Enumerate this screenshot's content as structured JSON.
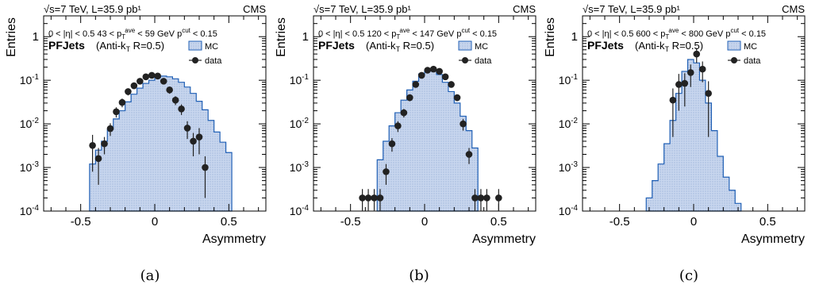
{
  "chart_data": [
    {
      "type": "histogram",
      "caption": "(a)",
      "header_left": "√s=7 TeV, L=35.9 pb¹",
      "header_right": "CMS",
      "cut_text": "0 < |η| < 0.5     43 < pTave < 59 GeV     pTcut < 0.15",
      "algo_main": "PFJets",
      "algo_sub": "(Anti-kT R=0.5)",
      "ylabel": "Entries",
      "xlabel": "Asymmetry",
      "xlim": [
        -0.75,
        0.75
      ],
      "ylim": [
        0.0001,
        3
      ],
      "yscale": "log",
      "xticks": [
        -0.5,
        0,
        0.5
      ],
      "xtick_labels": [
        "-0.5",
        "0",
        "0.5"
      ],
      "yticks": [
        0.0001,
        0.001,
        0.01,
        0.1,
        1
      ],
      "ytick_labels": [
        "10-4",
        "10-3",
        "10-2",
        "10-1",
        "1"
      ],
      "legend": [
        {
          "label": "MC",
          "kind": "fill",
          "color": "#c6d4ec"
        },
        {
          "label": "data",
          "kind": "marker",
          "color": "#222222"
        }
      ],
      "bin_width": 0.04,
      "mc": {
        "edges_start": -0.44,
        "values": [
          0.0012,
          0.0025,
          0.004,
          0.0075,
          0.013,
          0.02,
          0.032,
          0.048,
          0.066,
          0.085,
          0.1,
          0.115,
          0.125,
          0.12,
          0.108,
          0.09,
          0.07,
          0.05,
          0.033,
          0.021,
          0.012,
          0.0065,
          0.0038,
          0.0022
        ]
      },
      "data": {
        "x": [
          -0.42,
          -0.38,
          -0.34,
          -0.3,
          -0.26,
          -0.22,
          -0.18,
          -0.14,
          -0.1,
          -0.06,
          -0.02,
          0.02,
          0.06,
          0.1,
          0.14,
          0.18,
          0.22,
          0.26,
          0.3,
          0.34
        ],
        "y": [
          0.0032,
          0.0016,
          0.0035,
          0.0078,
          0.019,
          0.031,
          0.055,
          0.075,
          0.095,
          0.12,
          0.13,
          0.125,
          0.095,
          0.06,
          0.035,
          0.022,
          0.008,
          0.004,
          0.005,
          0.001
        ],
        "yerr": [
          0.0024,
          0.0012,
          0.0015,
          0.0025,
          0.005,
          0.007,
          0.01,
          0.012,
          0.014,
          0.016,
          0.016,
          0.016,
          0.014,
          0.011,
          0.008,
          0.006,
          0.0035,
          0.0022,
          0.003,
          0.0008
        ]
      }
    },
    {
      "type": "histogram",
      "caption": "(b)",
      "header_left": "√s=7 TeV, L=35.9 pb¹",
      "header_right": "CMS",
      "cut_text": "0 < |η| < 0.5     120 < pTave < 147 GeV     pTcut < 0.15",
      "algo_main": "PFJets",
      "algo_sub": "(Anti-kT R=0.5)",
      "ylabel": "Entries",
      "xlabel": "Asymmetry",
      "xlim": [
        -0.75,
        0.75
      ],
      "ylim": [
        0.0001,
        3
      ],
      "yscale": "log",
      "xticks": [
        -0.5,
        0,
        0.5
      ],
      "xtick_labels": [
        "-0.5",
        "0",
        "0.5"
      ],
      "yticks": [
        0.0001,
        0.001,
        0.01,
        0.1,
        1
      ],
      "ytick_labels": [
        "10-4",
        "10-3",
        "10-2",
        "10-1",
        "1"
      ],
      "legend": [
        {
          "label": "MC",
          "kind": "fill",
          "color": "#c6d4ec"
        },
        {
          "label": "data",
          "kind": "marker",
          "color": "#222222"
        }
      ],
      "bin_width": 0.04,
      "mc": {
        "edges_start": -0.32,
        "values": [
          0.0015,
          0.004,
          0.009,
          0.018,
          0.035,
          0.06,
          0.095,
          0.14,
          0.17,
          0.165,
          0.135,
          0.09,
          0.055,
          0.03,
          0.015,
          0.007,
          0.0028
        ]
      },
      "data": {
        "x": [
          -0.42,
          -0.38,
          -0.34,
          -0.3,
          -0.26,
          -0.22,
          -0.18,
          -0.14,
          -0.1,
          -0.06,
          -0.02,
          0.02,
          0.06,
          0.1,
          0.14,
          0.18,
          0.22,
          0.26,
          0.3,
          0.34,
          0.38,
          0.42,
          0.5
        ],
        "y": [
          0.0002,
          0.0002,
          0.0002,
          0.0002,
          0.0008,
          0.0035,
          0.009,
          0.018,
          0.04,
          0.08,
          0.13,
          0.17,
          0.18,
          0.16,
          0.12,
          0.08,
          0.04,
          0.01,
          0.002,
          0.0002,
          0.0002,
          0.0002,
          0.0002
        ],
        "yerr": [
          0.00012,
          0.00012,
          0.00012,
          0.00012,
          0.0004,
          0.0012,
          0.0025,
          0.004,
          0.007,
          0.01,
          0.013,
          0.015,
          0.015,
          0.014,
          0.012,
          0.01,
          0.007,
          0.003,
          0.0008,
          0.00012,
          0.00012,
          0.00012,
          0.00012
        ]
      }
    },
    {
      "type": "histogram",
      "caption": "(c)",
      "header_left": "√s=7 TeV, L=35.9 pb¹",
      "header_right": "CMS",
      "cut_text": "0 < |η| < 0.5     600 < pTave < 800 GeV     pTcut < 0.15",
      "algo_main": "PFJets",
      "algo_sub": "(Anti-kT R=0.5)",
      "ylabel": "Entries",
      "xlabel": "Asymmetry",
      "xlim": [
        -0.75,
        0.75
      ],
      "ylim": [
        0.0001,
        3
      ],
      "yscale": "log",
      "xticks": [
        -0.5,
        0,
        0.5
      ],
      "xtick_labels": [
        "-0.5",
        "0",
        "0.5"
      ],
      "yticks": [
        0.0001,
        0.001,
        0.01,
        0.1,
        1
      ],
      "ytick_labels": [
        "10-4",
        "10-3",
        "10-2",
        "10-1",
        "1"
      ],
      "legend": [
        {
          "label": "MC",
          "kind": "fill",
          "color": "#c6d4ec"
        },
        {
          "label": "data",
          "kind": "marker",
          "color": "#222222"
        }
      ],
      "bin_width": 0.04,
      "mc": {
        "edges_start": -0.32,
        "values": [
          0.0002,
          0.0005,
          0.0012,
          0.0035,
          0.012,
          0.05,
          0.16,
          0.3,
          0.25,
          0.1,
          0.03,
          0.007,
          0.0018,
          0.0006,
          0.0003,
          0.00015
        ]
      },
      "data": {
        "x": [
          -0.14,
          -0.1,
          -0.06,
          -0.02,
          0.02,
          0.06,
          0.1
        ],
        "y": [
          0.035,
          0.08,
          0.085,
          0.15,
          0.4,
          0.18,
          0.05
        ],
        "yerr": [
          0.03,
          0.06,
          0.06,
          0.08,
          0.15,
          0.09,
          0.045
        ]
      }
    }
  ]
}
